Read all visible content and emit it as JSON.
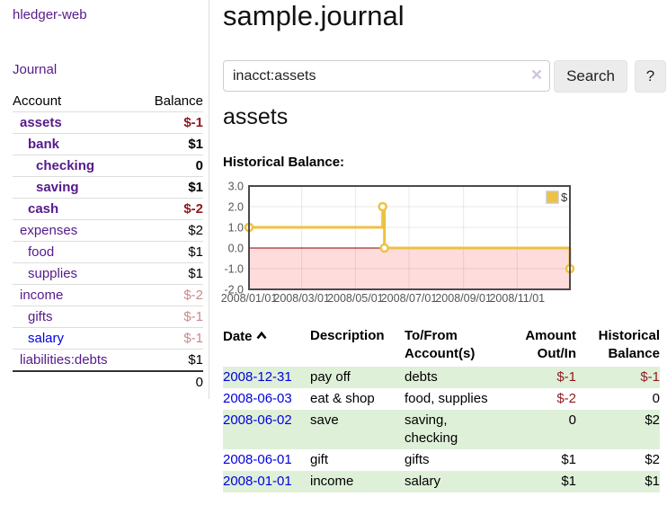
{
  "colors": {
    "link_purple": "#551a8b",
    "link_blue": "#0000e0",
    "negative_red": "#8e1a1f",
    "negative_dim": "#c9898d",
    "row_stripe_green": "#dff0d8"
  },
  "app": {
    "brand": "hledger-web"
  },
  "sidebar": {
    "journal_link": "Journal",
    "accounts": {
      "header": {
        "account": "Account",
        "balance": "Balance"
      },
      "rows": [
        {
          "name": "assets",
          "depth": 1,
          "matched": true,
          "balance": "$-1",
          "balance_style": "neg"
        },
        {
          "name": "bank",
          "depth": 2,
          "matched": true,
          "balance": "$1"
        },
        {
          "name": "checking",
          "depth": 3,
          "matched": true,
          "balance": "0"
        },
        {
          "name": "saving",
          "depth": 3,
          "matched": true,
          "balance": "$1"
        },
        {
          "name": "cash",
          "depth": 2,
          "matched": true,
          "balance": "$-2",
          "balance_style": "neg"
        },
        {
          "name": "expenses",
          "depth": 1,
          "matched": false,
          "balance": "$2"
        },
        {
          "name": "food",
          "depth": 2,
          "matched": false,
          "balance": "$1"
        },
        {
          "name": "supplies",
          "depth": 2,
          "matched": false,
          "balance": "$1"
        },
        {
          "name": "income",
          "depth": 1,
          "matched": false,
          "balance": "$-2",
          "balance_style": "neg-dim"
        },
        {
          "name": "gifts",
          "depth": 2,
          "matched": false,
          "balance": "$-1",
          "balance_style": "neg-dim"
        },
        {
          "name": "salary",
          "depth": 2,
          "matched": false,
          "balance": "$-1",
          "balance_style": "neg-dim",
          "link": "blue"
        },
        {
          "name": "liabilities:debts",
          "depth": 1,
          "matched": false,
          "balance": "$1"
        }
      ],
      "total": "0"
    }
  },
  "header": {
    "title": "sample.journal"
  },
  "search": {
    "value": "inacct:assets",
    "clear_icon": "×",
    "button": "Search",
    "help_button": "?"
  },
  "account_page": {
    "title": "assets",
    "chart_label": "Historical Balance:"
  },
  "chart_data": {
    "type": "line",
    "subtype": "step-with-markers",
    "title": "Historical Balance:",
    "series": [
      {
        "name": "$",
        "color": "#edc240",
        "points": [
          [
            "2008-01-01",
            1
          ],
          [
            "2008-06-01",
            2
          ],
          [
            "2008-06-03",
            0
          ],
          [
            "2008-12-31",
            -1
          ]
        ]
      }
    ],
    "xlim": [
      "2008-01-01",
      "2008-12-31"
    ],
    "ylim": [
      -2,
      3
    ],
    "x_ticks": [
      "2008/01/01",
      "2008/03/01",
      "2008/05/01",
      "2008/07/01",
      "2008/09/01",
      "2008/11/01"
    ],
    "y_ticks": [
      3.0,
      2.0,
      1.0,
      0.0,
      -1.0,
      -2.0
    ],
    "grid": true,
    "grid_color": "rgba(0,0,0,0.09)",
    "border_color": "#4a4a4a",
    "zero_line_color": "#8b0000",
    "negative_region_color": "#ffdcdc",
    "axis_text_color": "#545454",
    "legend": {
      "position": "top-right",
      "label": "$"
    }
  },
  "register": {
    "headers": {
      "date": "Date",
      "description": "Description",
      "accounts": "To/From Account(s)",
      "amount": "Amount Out/In",
      "balance": "Historical Balance"
    },
    "sort": {
      "column": "date",
      "direction": "ascending"
    },
    "rows": [
      {
        "date": "2008-12-31",
        "description": "pay off",
        "accounts": "debts",
        "amount": "$-1",
        "amount_neg": true,
        "balance": "$-1",
        "balance_neg": true
      },
      {
        "date": "2008-06-03",
        "description": "eat & shop",
        "accounts": "food, supplies",
        "amount": "$-2",
        "amount_neg": true,
        "balance": "0",
        "balance_neg": false
      },
      {
        "date": "2008-06-02",
        "description": "save",
        "accounts": "saving, checking",
        "amount": "0",
        "amount_neg": false,
        "balance": "$2",
        "balance_neg": false
      },
      {
        "date": "2008-06-01",
        "description": "gift",
        "accounts": "gifts",
        "amount": "$1",
        "amount_neg": false,
        "balance": "$2",
        "balance_neg": false
      },
      {
        "date": "2008-01-01",
        "description": "income",
        "accounts": "salary",
        "amount": "$1",
        "amount_neg": false,
        "balance": "$1",
        "balance_neg": false
      }
    ]
  }
}
